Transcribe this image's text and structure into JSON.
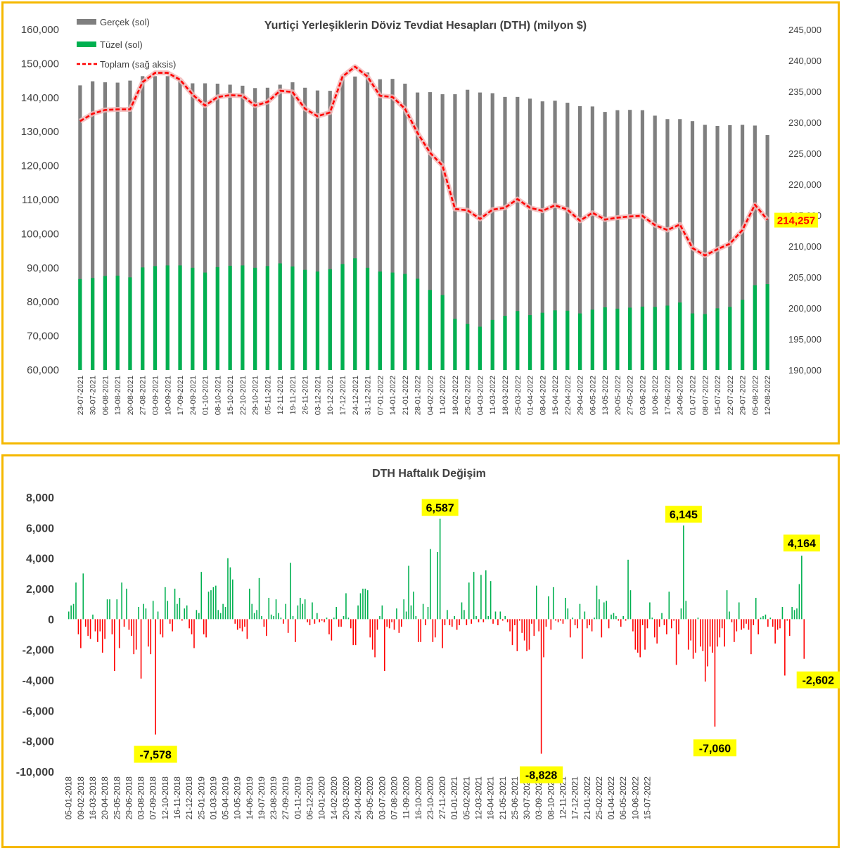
{
  "chart_data": [
    {
      "type": "bar+line",
      "title": "Yurtiçi Yerleşiklerin Döviz Tevdiat Hesapları (DTH) (milyon $)",
      "legend": [
        {
          "name": "Gerçek (sol)",
          "color": "#7f7f7f",
          "kind": "bar"
        },
        {
          "name": "Tüzel (sol)",
          "color": "#00b050",
          "kind": "bar"
        },
        {
          "name": "Toplam (sağ aksis)",
          "color": "#ff0000",
          "kind": "dashed-line"
        }
      ],
      "legend_position": "top-left",
      "left_axis": {
        "min": 60000,
        "max": 160000,
        "step": 10000,
        "ticks": [
          "60,000",
          "70,000",
          "80,000",
          "90,000",
          "100,000",
          "110,000",
          "120,000",
          "130,000",
          "140,000",
          "150,000",
          "160,000"
        ]
      },
      "right_axis": {
        "min": 190000,
        "max": 245000,
        "step": 5000,
        "ticks": [
          "190,000",
          "195,000",
          "200,000",
          "205,000",
          "210,000",
          "215,000",
          "220,000",
          "225,000",
          "230,000",
          "235,000",
          "240,000",
          "245,000"
        ]
      },
      "categories": [
        "23-07-2021",
        "30-07-2021",
        "06-08-2021",
        "13-08-2021",
        "20-08-2021",
        "27-08-2021",
        "03-09-2021",
        "10-09-2021",
        "17-09-2021",
        "24-09-2021",
        "01-10-2021",
        "08-10-2021",
        "15-10-2021",
        "22-10-2021",
        "29-10-2021",
        "05-11-2021",
        "12-11-2021",
        "19-11-2021",
        "26-11-2021",
        "03-12-2021",
        "10-12-2021",
        "17-12-2021",
        "24-12-2021",
        "31-12-2021",
        "07-01-2022",
        "14-01-2022",
        "21-01-2022",
        "28-01-2022",
        "04-02-2022",
        "11-02-2022",
        "18-02-2022",
        "25-02-2022",
        "04-03-2022",
        "11-03-2022",
        "18-03-2022",
        "25-03-2022",
        "01-04-2022",
        "08-04-2022",
        "15-04-2022",
        "22-04-2022",
        "29-04-2022",
        "06-05-2022",
        "13-05-2022",
        "20-05-2022",
        "27-05-2022",
        "03-06-2022",
        "10-06-2022",
        "17-06-2022",
        "24-06-2022",
        "01-07-2022",
        "08-07-2022",
        "15-07-2022",
        "22-07-2022",
        "29-07-2022",
        "05-08-2022",
        "12-08-2022"
      ],
      "series": [
        {
          "name": "Gerçek (sol)",
          "axis": "left",
          "values": [
            143600,
            144800,
            144500,
            144400,
            145000,
            146300,
            146300,
            146300,
            145100,
            144200,
            144200,
            144100,
            143800,
            143500,
            142800,
            142900,
            143800,
            144500,
            142900,
            142100,
            142000,
            146300,
            146200,
            147400,
            145400,
            145500,
            144100,
            141500,
            141600,
            141000,
            141000,
            142300,
            141500,
            141300,
            140200,
            140200,
            139700,
            138900,
            139100,
            138500,
            137500,
            137400,
            135800,
            136300,
            136400,
            136300,
            134700,
            133700,
            133700,
            133100,
            132000,
            131700,
            131900,
            132000,
            131800,
            129000
          ]
        },
        {
          "name": "Tüzel (sol)",
          "axis": "left",
          "values": [
            86700,
            87000,
            87600,
            87700,
            87200,
            90100,
            90500,
            90700,
            90700,
            90000,
            88600,
            90200,
            90600,
            90700,
            90000,
            90500,
            91300,
            90400,
            89400,
            88900,
            89600,
            91100,
            92800,
            90000,
            88900,
            88600,
            88200,
            86800,
            83500,
            82000,
            75000,
            73500,
            72700,
            74700,
            75900,
            77300,
            76100,
            76800,
            77500,
            77400,
            76600,
            77700,
            78400,
            78000,
            78300,
            78600,
            78500,
            78900,
            79800,
            76600,
            76400,
            78100,
            78500,
            80600,
            84900,
            85200
          ]
        },
        {
          "name": "Toplam (sağ aksis)",
          "axis": "right",
          "values": [
            230200,
            231400,
            232000,
            232100,
            232100,
            236500,
            238000,
            238000,
            236900,
            234500,
            232700,
            234100,
            234400,
            234300,
            232700,
            233300,
            235100,
            234900,
            232200,
            231000,
            231600,
            237400,
            239000,
            237400,
            234300,
            234100,
            232200,
            228300,
            225100,
            223000,
            216000,
            215800,
            214400,
            215900,
            216200,
            217600,
            216200,
            215700,
            216600,
            215900,
            214100,
            215400,
            214300,
            214600,
            214800,
            214900,
            213400,
            212600,
            213500,
            209700,
            208500,
            209500,
            210400,
            212600,
            216700,
            214257
          ]
        }
      ],
      "annotations": [
        {
          "series": "Toplam (sağ aksis)",
          "category": "12-08-2022",
          "label": "214,257"
        }
      ]
    },
    {
      "type": "bar",
      "title": "DTH Haftalık Değişim",
      "y_axis": {
        "min": -10000,
        "max": 8000,
        "step": 2000,
        "ticks": [
          "-10,000",
          "-8,000",
          "-6,000",
          "-4,000",
          "-2,000",
          "0",
          "2,000",
          "4,000",
          "6,000",
          "8,000"
        ]
      },
      "x_tick_labels": [
        "05-01-2018",
        "09-02-2018",
        "16-03-2018",
        "20-04-2018",
        "25-05-2018",
        "29-06-2018",
        "03-08-2018",
        "07-09-2018",
        "12-10-2018",
        "16-11-2018",
        "21-12-2018",
        "25-01-2019",
        "01-03-2019",
        "05-04-2019",
        "10-05-2019",
        "14-06-2019",
        "19-07-2019",
        "23-08-2019",
        "27-09-2019",
        "01-11-2019",
        "06-12-2019",
        "10-01-2020",
        "14-02-2020",
        "20-03-2020",
        "24-04-2020",
        "29-05-2020",
        "03-07-2020",
        "07-08-2020",
        "11-09-2020",
        "16-10-2020",
        "23-10-2020",
        "27-11-2020",
        "01-01-2021",
        "05-02-2021",
        "12-03-2021",
        "16-04-2021",
        "21-05-2021",
        "25-06-2021",
        "30-07-2021",
        "03-09-2021",
        "08-10-2021",
        "12-11-2021",
        "17-12-2021",
        "21-01-2022",
        "25-02-2022",
        "01-04-2022",
        "06-05-2022",
        "10-06-2022",
        "15-07-2022"
      ],
      "positive_color": "#00b050",
      "negative_color": "#ff0000",
      "weekly_values": [
        500,
        900,
        1000,
        2400,
        -1000,
        -1900,
        3000,
        -500,
        -1100,
        -1300,
        300,
        -800,
        -1500,
        -800,
        -2200,
        -1300,
        1300,
        1300,
        -1000,
        -3400,
        1300,
        -1900,
        2400,
        -500,
        2000,
        -700,
        -1100,
        -2300,
        -2000,
        800,
        -3900,
        1000,
        700,
        -1800,
        -2300,
        1200,
        -7578,
        500,
        -1000,
        -1200,
        2100,
        1200,
        -300,
        -800,
        2000,
        1000,
        1400,
        -100,
        700,
        900,
        -600,
        -1000,
        -1900,
        600,
        400,
        3100,
        -1000,
        -1200,
        1800,
        1900,
        2100,
        2200,
        600,
        400,
        1000,
        800,
        4000,
        3400,
        2600,
        -300,
        -700,
        -600,
        -800,
        -500,
        -1300,
        2000,
        1000,
        400,
        600,
        2700,
        200,
        -500,
        -1100,
        1400,
        300,
        200,
        1300,
        400,
        100,
        -300,
        1000,
        -900,
        3700,
        200,
        -1500,
        900,
        1400,
        1000,
        1300,
        -200,
        -400,
        1100,
        -300,
        400,
        -200,
        -100,
        -200,
        100,
        -1000,
        -1400,
        100,
        800,
        -500,
        -500,
        200,
        1700,
        100,
        -600,
        -1700,
        -1700,
        900,
        1700,
        2000,
        2000,
        1900,
        -1200,
        -2000,
        -2500,
        -700,
        200,
        900,
        -3400,
        -500,
        -600,
        -200,
        -700,
        700,
        -900,
        -500,
        1300,
        500,
        3500,
        900,
        1800,
        200,
        -1500,
        -1500,
        1000,
        -400,
        800,
        4600,
        -1500,
        -1200,
        4400,
        6587,
        -1900,
        -400,
        600,
        -400,
        -500,
        200,
        -700,
        -400,
        1100,
        600,
        -400,
        2400,
        -300,
        3100,
        200,
        -200,
        2900,
        -200,
        3200,
        200,
        2500,
        -300,
        500,
        -400,
        500,
        -100,
        200,
        -200,
        -800,
        -1700,
        -400,
        -2100,
        -100,
        -900,
        -1400,
        -2100,
        -2000,
        -300,
        -1100,
        2200,
        -800,
        -8828,
        -2500,
        -500,
        1500,
        -700,
        2100,
        -100,
        -200,
        -100,
        -300,
        1400,
        700,
        -1200,
        100,
        -400,
        -600,
        1000,
        -2600,
        500,
        -600,
        -400,
        -800,
        100,
        2200,
        1300,
        -1200,
        1100,
        1200,
        -600,
        300,
        400,
        200,
        -100,
        -500,
        200,
        -100,
        3900,
        1900,
        -800,
        -2000,
        -2200,
        -2500,
        -400,
        -2000,
        -600,
        1100,
        100,
        -1200,
        -1600,
        -500,
        400,
        -400,
        -1000,
        1800,
        -600,
        -100,
        -3000,
        -1000,
        700,
        6145,
        1200,
        -2000,
        -1400,
        -2600,
        -2200,
        100,
        -1800,
        -2100,
        -4100,
        -3100,
        -1800,
        -2200,
        -7060,
        -1800,
        -1200,
        -600,
        -1800,
        1900,
        500,
        -200,
        -1500,
        -800,
        1100,
        -700,
        -600,
        -300,
        -700,
        -2300,
        -400,
        1400,
        -1000,
        100,
        200,
        300,
        -500,
        100,
        -500,
        -1600,
        -700,
        -600,
        800,
        -3700,
        -100,
        -1100,
        800,
        600,
        700,
        2300,
        4164,
        -2602
      ],
      "callouts": [
        "-7,578",
        "6,587",
        "-8,828",
        "6,145",
        "-7,060",
        "4,164",
        "-2,602"
      ]
    }
  ]
}
